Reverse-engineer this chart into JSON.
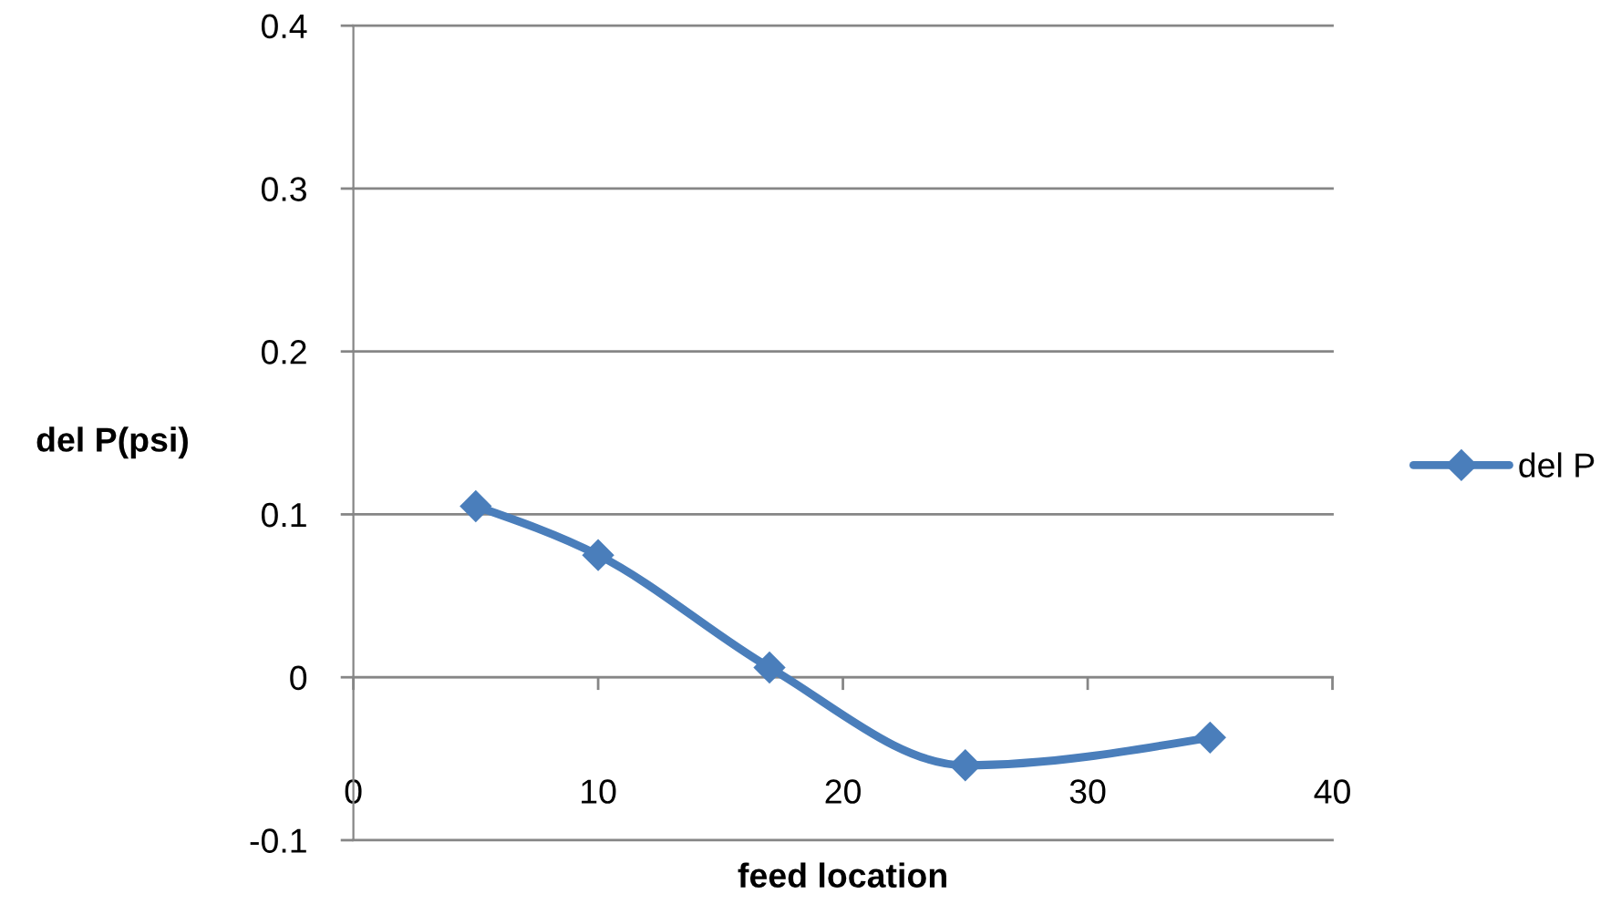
{
  "chart_data": {
    "type": "line",
    "xlabel": "feed location",
    "ylabel": "del P(psi)",
    "x": [
      5,
      10,
      17,
      25,
      35
    ],
    "series": [
      {
        "name": "del P",
        "color": "#4a7ebb",
        "values": [
          0.105,
          0.075,
          0.006,
          -0.054,
          -0.037
        ]
      }
    ],
    "xlim": [
      0,
      40
    ],
    "xticks": [
      0,
      10,
      20,
      30,
      40
    ],
    "ylim": [
      -0.1,
      0.4
    ],
    "yticks": [
      -0.1,
      0,
      0.1,
      0.2,
      0.3,
      0.4
    ],
    "grid": "y",
    "legend": "right",
    "marker": "diamond",
    "line_style": "solid"
  }
}
